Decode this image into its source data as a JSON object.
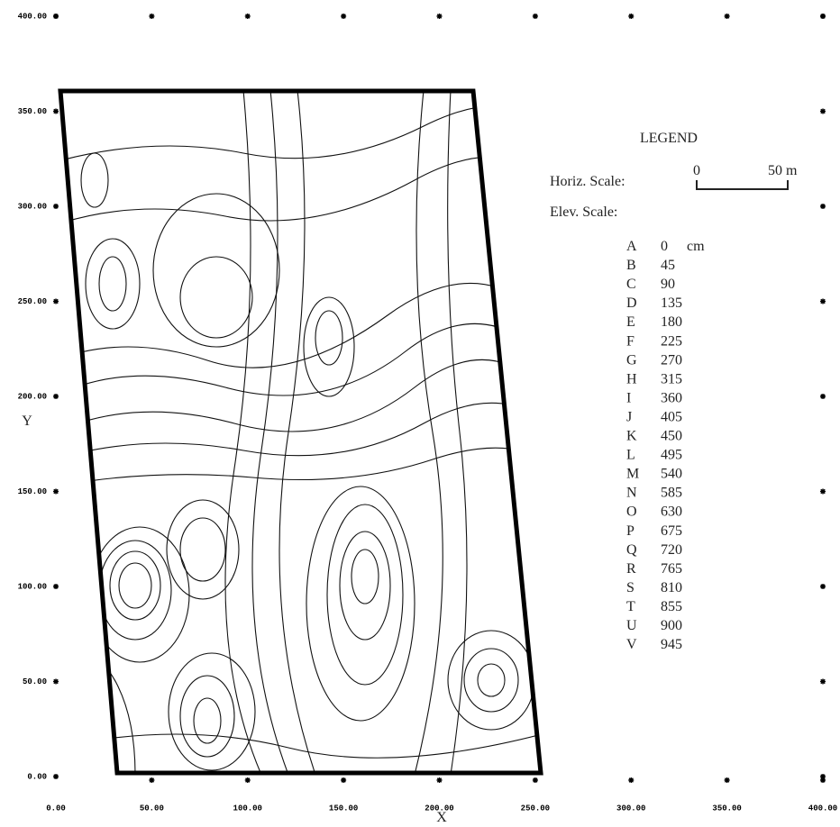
{
  "chart_data": {
    "type": "contour",
    "xlabel": "X",
    "ylabel": "Y",
    "xlim": [
      0,
      400
    ],
    "ylim": [
      0,
      400
    ],
    "xticks": [
      {
        "value": 0,
        "label": "0.00"
      },
      {
        "value": 50,
        "label": "50.00"
      },
      {
        "value": 100,
        "label": "100.00"
      },
      {
        "value": 150,
        "label": "150.00"
      },
      {
        "value": 200,
        "label": "200.00"
      },
      {
        "value": 250,
        "label": "250.00"
      },
      {
        "value": 300,
        "label": "300.00"
      },
      {
        "value": 350,
        "label": "350.00"
      },
      {
        "value": 400,
        "label": "400.00"
      }
    ],
    "yticks": [
      {
        "value": 0,
        "label": "0.00"
      },
      {
        "value": 50,
        "label": "50.00"
      },
      {
        "value": 100,
        "label": "100.00"
      },
      {
        "value": 150,
        "label": "150.00"
      },
      {
        "value": 200,
        "label": "200.00"
      },
      {
        "value": 250,
        "label": "250.00"
      },
      {
        "value": 300,
        "label": "300.00"
      },
      {
        "value": 350,
        "label": "350.00"
      },
      {
        "value": 400,
        "label": "400.00"
      }
    ],
    "legend": {
      "title": "LEGEND",
      "horiz_scale_label": "Horiz. Scale:",
      "horiz_scale_start": "0",
      "horiz_scale_end": "50 m",
      "elev_scale_label": "Elev. Scale:",
      "elev_unit": "cm",
      "levels": [
        {
          "letter": "A",
          "value": 0
        },
        {
          "letter": "B",
          "value": 45
        },
        {
          "letter": "C",
          "value": 90
        },
        {
          "letter": "D",
          "value": 135
        },
        {
          "letter": "E",
          "value": 180
        },
        {
          "letter": "F",
          "value": 225
        },
        {
          "letter": "G",
          "value": 270
        },
        {
          "letter": "H",
          "value": 315
        },
        {
          "letter": "I",
          "value": 360
        },
        {
          "letter": "J",
          "value": 405
        },
        {
          "letter": "K",
          "value": 450
        },
        {
          "letter": "L",
          "value": 495
        },
        {
          "letter": "M",
          "value": 540
        },
        {
          "letter": "N",
          "value": 585
        },
        {
          "letter": "O",
          "value": 630
        },
        {
          "letter": "P",
          "value": 675
        },
        {
          "letter": "Q",
          "value": 720
        },
        {
          "letter": "R",
          "value": 765
        },
        {
          "letter": "S",
          "value": 810
        },
        {
          "letter": "T",
          "value": 855
        },
        {
          "letter": "U",
          "value": 900
        },
        {
          "letter": "V",
          "value": 945
        }
      ]
    }
  }
}
